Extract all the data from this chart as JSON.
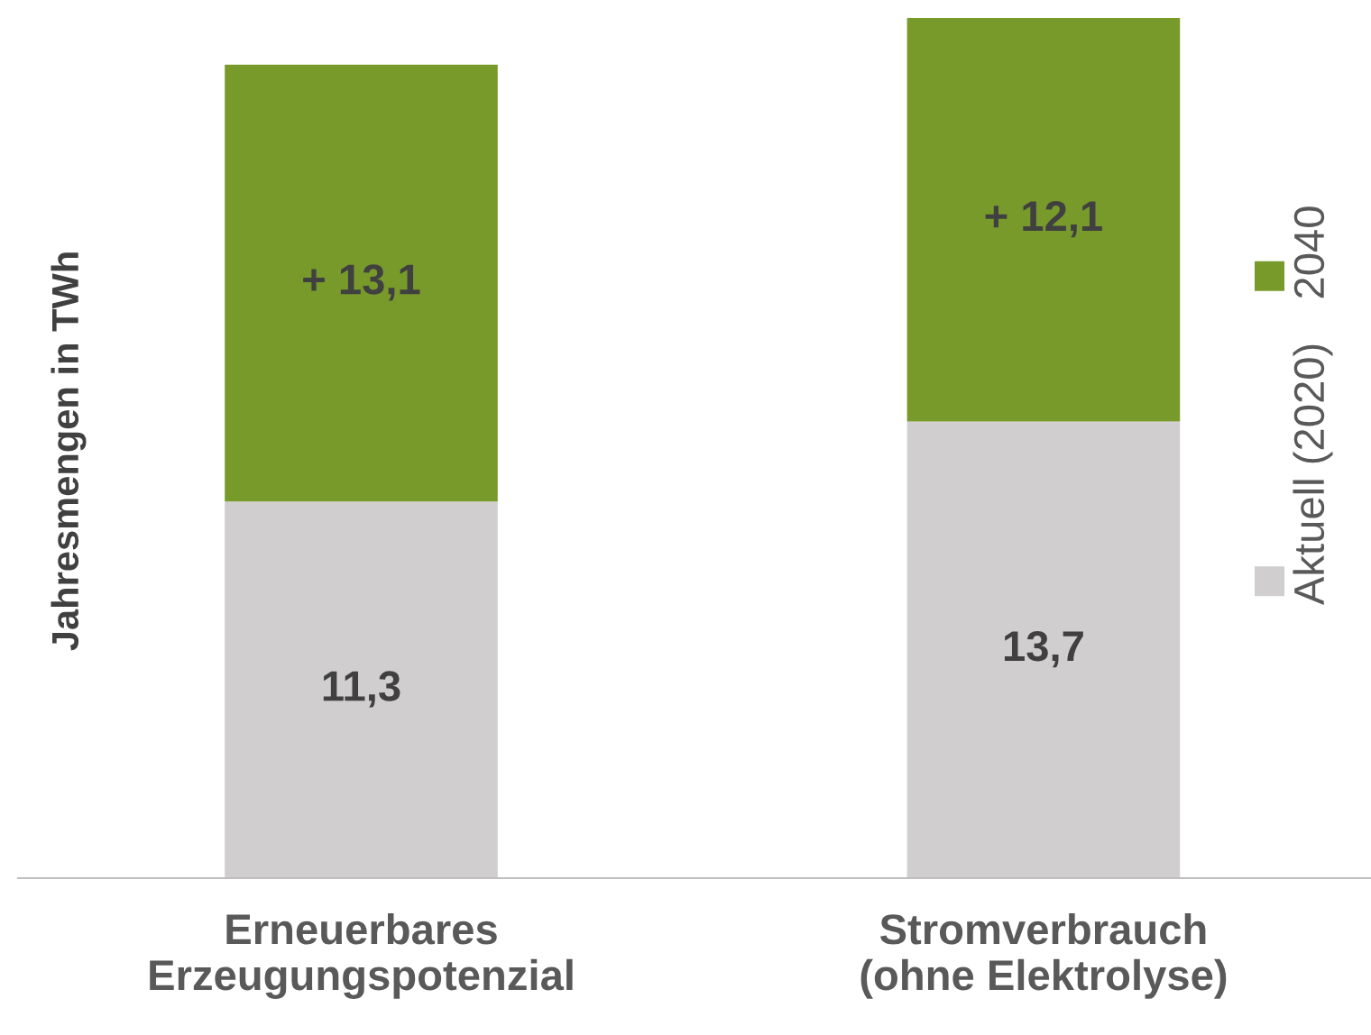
{
  "chart_data": {
    "type": "bar",
    "stacked": true,
    "ylabel": "Jahresmengen in TWh",
    "categories": [
      "Erneuerbares\nErzeugungspotenzial",
      "Stromverbrauch\n(ohne Elektrolyse)"
    ],
    "series": [
      {
        "name": "Aktuell (2020)",
        "color": "#d0cecf",
        "values": [
          11.3,
          13.7
        ],
        "value_labels": [
          "11,3",
          "13,7"
        ]
      },
      {
        "name": "2040",
        "color": "#779a2b",
        "values": [
          13.1,
          12.1
        ],
        "value_labels": [
          "+ 13,1",
          "+ 12,1"
        ]
      }
    ],
    "legend": "right",
    "grid": false
  }
}
